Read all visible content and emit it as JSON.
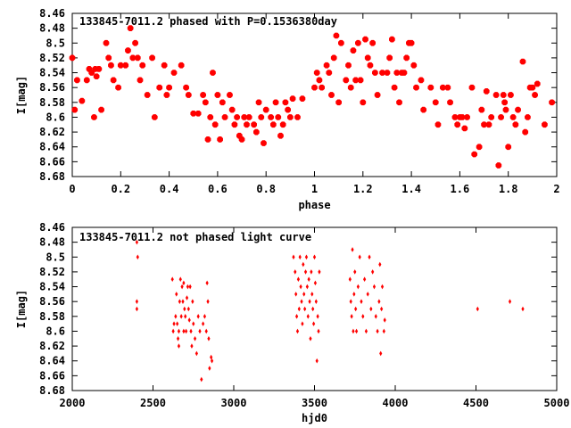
{
  "chart_data": [
    {
      "type": "scatter",
      "title": "133845-7011.2 phased with P=0.1536380day",
      "xlabel": "phase",
      "ylabel": "I[mag]",
      "xlim": [
        0,
        2
      ],
      "ylim": [
        8.46,
        8.68
      ],
      "y_inverted": true,
      "grid": false,
      "marker_color": "#ff0000",
      "marker": "star",
      "xticks": [
        "0",
        "0.2",
        "0.4",
        "0.6",
        "0.8",
        "1",
        "1.2",
        "1.4",
        "1.6",
        "1.8",
        "2"
      ],
      "yticks": [
        "8.46",
        "8.48",
        "8.5",
        "8.52",
        "8.54",
        "8.56",
        "8.58",
        "8.6",
        "8.62",
        "8.64",
        "8.66",
        "8.68"
      ],
      "points": [
        [
          0.0,
          8.52
        ],
        [
          0.01,
          8.59
        ],
        [
          0.02,
          8.55
        ],
        [
          0.04,
          8.578
        ],
        [
          0.06,
          8.55
        ],
        [
          0.07,
          8.535
        ],
        [
          0.08,
          8.54
        ],
        [
          0.09,
          8.6
        ],
        [
          0.095,
          8.535
        ],
        [
          0.1,
          8.545
        ],
        [
          0.11,
          8.535
        ],
        [
          0.12,
          8.59
        ],
        [
          0.14,
          8.5
        ],
        [
          0.15,
          8.52
        ],
        [
          0.16,
          8.53
        ],
        [
          0.17,
          8.55
        ],
        [
          0.19,
          8.56
        ],
        [
          0.2,
          8.53
        ],
        [
          0.22,
          8.53
        ],
        [
          0.23,
          8.51
        ],
        [
          0.24,
          8.48
        ],
        [
          0.25,
          8.52
        ],
        [
          0.26,
          8.5
        ],
        [
          0.27,
          8.52
        ],
        [
          0.28,
          8.55
        ],
        [
          0.29,
          8.53
        ],
        [
          0.31,
          8.57
        ],
        [
          0.33,
          8.52
        ],
        [
          0.34,
          8.6
        ],
        [
          0.36,
          8.56
        ],
        [
          0.38,
          8.53
        ],
        [
          0.39,
          8.57
        ],
        [
          0.4,
          8.56
        ],
        [
          0.42,
          8.54
        ],
        [
          0.45,
          8.53
        ],
        [
          0.47,
          8.56
        ],
        [
          0.48,
          8.57
        ],
        [
          0.5,
          8.595
        ],
        [
          0.52,
          8.595
        ],
        [
          0.54,
          8.57
        ],
        [
          0.55,
          8.58
        ],
        [
          0.56,
          8.63
        ],
        [
          0.57,
          8.6
        ],
        [
          0.58,
          8.54
        ],
        [
          0.59,
          8.61
        ],
        [
          0.6,
          8.57
        ],
        [
          0.61,
          8.63
        ],
        [
          0.62,
          8.58
        ],
        [
          0.63,
          8.6
        ],
        [
          0.65,
          8.57
        ],
        [
          0.66,
          8.59
        ],
        [
          0.67,
          8.61
        ],
        [
          0.68,
          8.6
        ],
        [
          0.69,
          8.625
        ],
        [
          0.7,
          8.63
        ],
        [
          0.71,
          8.6
        ],
        [
          0.72,
          8.61
        ],
        [
          0.73,
          8.6
        ],
        [
          0.75,
          8.61
        ],
        [
          0.76,
          8.62
        ],
        [
          0.77,
          8.58
        ],
        [
          0.78,
          8.6
        ],
        [
          0.79,
          8.635
        ],
        [
          0.8,
          8.59
        ],
        [
          0.82,
          8.6
        ],
        [
          0.83,
          8.61
        ],
        [
          0.84,
          8.58
        ],
        [
          0.85,
          8.6
        ],
        [
          0.86,
          8.625
        ],
        [
          0.87,
          8.61
        ],
        [
          0.88,
          8.58
        ],
        [
          0.89,
          8.59
        ],
        [
          0.9,
          8.6
        ],
        [
          0.91,
          8.575
        ],
        [
          0.93,
          8.6
        ],
        [
          0.95,
          8.575
        ],
        [
          1.0,
          8.56
        ],
        [
          1.01,
          8.54
        ],
        [
          1.02,
          8.55
        ],
        [
          1.03,
          8.56
        ],
        [
          1.05,
          8.53
        ],
        [
          1.06,
          8.54
        ],
        [
          1.07,
          8.57
        ],
        [
          1.08,
          8.52
        ],
        [
          1.09,
          8.49
        ],
        [
          1.1,
          8.58
        ],
        [
          1.11,
          8.5
        ],
        [
          1.13,
          8.55
        ],
        [
          1.14,
          8.53
        ],
        [
          1.15,
          8.56
        ],
        [
          1.16,
          8.51
        ],
        [
          1.17,
          8.55
        ],
        [
          1.18,
          8.5
        ],
        [
          1.19,
          8.55
        ],
        [
          1.2,
          8.58
        ],
        [
          1.21,
          8.495
        ],
        [
          1.22,
          8.52
        ],
        [
          1.23,
          8.53
        ],
        [
          1.24,
          8.5
        ],
        [
          1.25,
          8.54
        ],
        [
          1.26,
          8.57
        ],
        [
          1.28,
          8.54
        ],
        [
          1.3,
          8.54
        ],
        [
          1.31,
          8.52
        ],
        [
          1.32,
          8.495
        ],
        [
          1.33,
          8.56
        ],
        [
          1.34,
          8.54
        ],
        [
          1.35,
          8.58
        ],
        [
          1.36,
          8.54
        ],
        [
          1.37,
          8.54
        ],
        [
          1.38,
          8.52
        ],
        [
          1.39,
          8.5
        ],
        [
          1.4,
          8.5
        ],
        [
          1.41,
          8.53
        ],
        [
          1.42,
          8.56
        ],
        [
          1.44,
          8.55
        ],
        [
          1.45,
          8.59
        ],
        [
          1.48,
          8.56
        ],
        [
          1.5,
          8.58
        ],
        [
          1.51,
          8.61
        ],
        [
          1.53,
          8.56
        ],
        [
          1.55,
          8.56
        ],
        [
          1.56,
          8.58
        ],
        [
          1.58,
          8.6
        ],
        [
          1.59,
          8.61
        ],
        [
          1.6,
          8.6
        ],
        [
          1.61,
          8.6
        ],
        [
          1.62,
          8.615
        ],
        [
          1.63,
          8.6
        ],
        [
          1.65,
          8.56
        ],
        [
          1.66,
          8.65
        ],
        [
          1.68,
          8.64
        ],
        [
          1.69,
          8.59
        ],
        [
          1.7,
          8.61
        ],
        [
          1.71,
          8.565
        ],
        [
          1.72,
          8.61
        ],
        [
          1.73,
          8.6
        ],
        [
          1.75,
          8.57
        ],
        [
          1.76,
          8.665
        ],
        [
          1.77,
          8.6
        ],
        [
          1.78,
          8.57
        ],
        [
          1.785,
          8.58
        ],
        [
          1.79,
          8.59
        ],
        [
          1.8,
          8.64
        ],
        [
          1.81,
          8.57
        ],
        [
          1.82,
          8.6
        ],
        [
          1.83,
          8.61
        ],
        [
          1.84,
          8.59
        ],
        [
          1.86,
          8.525
        ],
        [
          1.87,
          8.62
        ],
        [
          1.88,
          8.6
        ],
        [
          1.89,
          8.56
        ],
        [
          1.9,
          8.56
        ],
        [
          1.91,
          8.57
        ],
        [
          1.92,
          8.555
        ],
        [
          1.95,
          8.61
        ],
        [
          1.98,
          8.58
        ]
      ]
    },
    {
      "type": "scatter",
      "title": "133845-7011.2 not phased light curve",
      "xlabel": "hjd0",
      "ylabel": "I[mag]",
      "xlim": [
        2000,
        5000
      ],
      "ylim": [
        8.46,
        8.68
      ],
      "y_inverted": true,
      "grid": false,
      "marker_color": "#ff0000",
      "marker": "diamond",
      "xticks": [
        "2000",
        "2500",
        "3000",
        "3500",
        "4000",
        "4500",
        "5000"
      ],
      "yticks": [
        "8.46",
        "8.48",
        "8.5",
        "8.52",
        "8.54",
        "8.56",
        "8.58",
        "8.6",
        "8.62",
        "8.64",
        "8.66",
        "8.68"
      ],
      "points": [
        [
          2400,
          8.48
        ],
        [
          2400,
          8.56
        ],
        [
          2400,
          8.57
        ],
        [
          2405,
          8.5
        ],
        [
          2620,
          8.53
        ],
        [
          2625,
          8.6
        ],
        [
          2630,
          8.59
        ],
        [
          2640,
          8.58
        ],
        [
          2645,
          8.55
        ],
        [
          2650,
          8.59
        ],
        [
          2655,
          8.61
        ],
        [
          2660,
          8.62
        ],
        [
          2660,
          8.6
        ],
        [
          2665,
          8.56
        ],
        [
          2670,
          8.53
        ],
        [
          2675,
          8.58
        ],
        [
          2680,
          8.54
        ],
        [
          2685,
          8.56
        ],
        [
          2690,
          8.6
        ],
        [
          2690,
          8.535
        ],
        [
          2695,
          8.57
        ],
        [
          2700,
          8.58
        ],
        [
          2705,
          8.6
        ],
        [
          2710,
          8.555
        ],
        [
          2715,
          8.54
        ],
        [
          2720,
          8.57
        ],
        [
          2725,
          8.585
        ],
        [
          2730,
          8.54
        ],
        [
          2735,
          8.6
        ],
        [
          2740,
          8.62
        ],
        [
          2745,
          8.56
        ],
        [
          2750,
          8.59
        ],
        [
          2760,
          8.61
        ],
        [
          2770,
          8.63
        ],
        [
          2780,
          8.58
        ],
        [
          2790,
          8.6
        ],
        [
          2800,
          8.665
        ],
        [
          2810,
          8.59
        ],
        [
          2820,
          8.58
        ],
        [
          2830,
          8.6
        ],
        [
          2835,
          8.535
        ],
        [
          2840,
          8.56
        ],
        [
          2845,
          8.61
        ],
        [
          2850,
          8.65
        ],
        [
          2860,
          8.635
        ],
        [
          2865,
          8.64
        ],
        [
          3370,
          8.5
        ],
        [
          3380,
          8.52
        ],
        [
          3385,
          8.55
        ],
        [
          3390,
          8.58
        ],
        [
          3395,
          8.6
        ],
        [
          3400,
          8.53
        ],
        [
          3405,
          8.57
        ],
        [
          3410,
          8.5
        ],
        [
          3415,
          8.54
        ],
        [
          3420,
          8.56
        ],
        [
          3425,
          8.59
        ],
        [
          3430,
          8.51
        ],
        [
          3435,
          8.55
        ],
        [
          3440,
          8.57
        ],
        [
          3445,
          8.52
        ],
        [
          3450,
          8.5
        ],
        [
          3455,
          8.54
        ],
        [
          3460,
          8.58
        ],
        [
          3465,
          8.53
        ],
        [
          3470,
          8.56
        ],
        [
          3475,
          8.61
        ],
        [
          3480,
          8.52
        ],
        [
          3485,
          8.55
        ],
        [
          3490,
          8.57
        ],
        [
          3495,
          8.59
        ],
        [
          3500,
          8.5
        ],
        [
          3505,
          8.535
        ],
        [
          3510,
          8.56
        ],
        [
          3515,
          8.64
        ],
        [
          3520,
          8.58
        ],
        [
          3525,
          8.6
        ],
        [
          3530,
          8.52
        ],
        [
          3720,
          8.53
        ],
        [
          3725,
          8.56
        ],
        [
          3730,
          8.58
        ],
        [
          3735,
          8.49
        ],
        [
          3740,
          8.6
        ],
        [
          3745,
          8.55
        ],
        [
          3750,
          8.52
        ],
        [
          3755,
          8.57
        ],
        [
          3760,
          8.6
        ],
        [
          3770,
          8.54
        ],
        [
          3780,
          8.5
        ],
        [
          3790,
          8.56
        ],
        [
          3800,
          8.58
        ],
        [
          3810,
          8.53
        ],
        [
          3820,
          8.6
        ],
        [
          3830,
          8.55
        ],
        [
          3840,
          8.5
        ],
        [
          3850,
          8.57
        ],
        [
          3860,
          8.52
        ],
        [
          3870,
          8.54
        ],
        [
          3880,
          8.58
        ],
        [
          3890,
          8.6
        ],
        [
          3900,
          8.56
        ],
        [
          3905,
          8.51
        ],
        [
          3910,
          8.63
        ],
        [
          3915,
          8.57
        ],
        [
          3920,
          8.54
        ],
        [
          3930,
          8.6
        ],
        [
          3935,
          8.585
        ],
        [
          4510,
          8.57
        ],
        [
          4710,
          8.56
        ],
        [
          4790,
          8.57
        ]
      ]
    }
  ]
}
